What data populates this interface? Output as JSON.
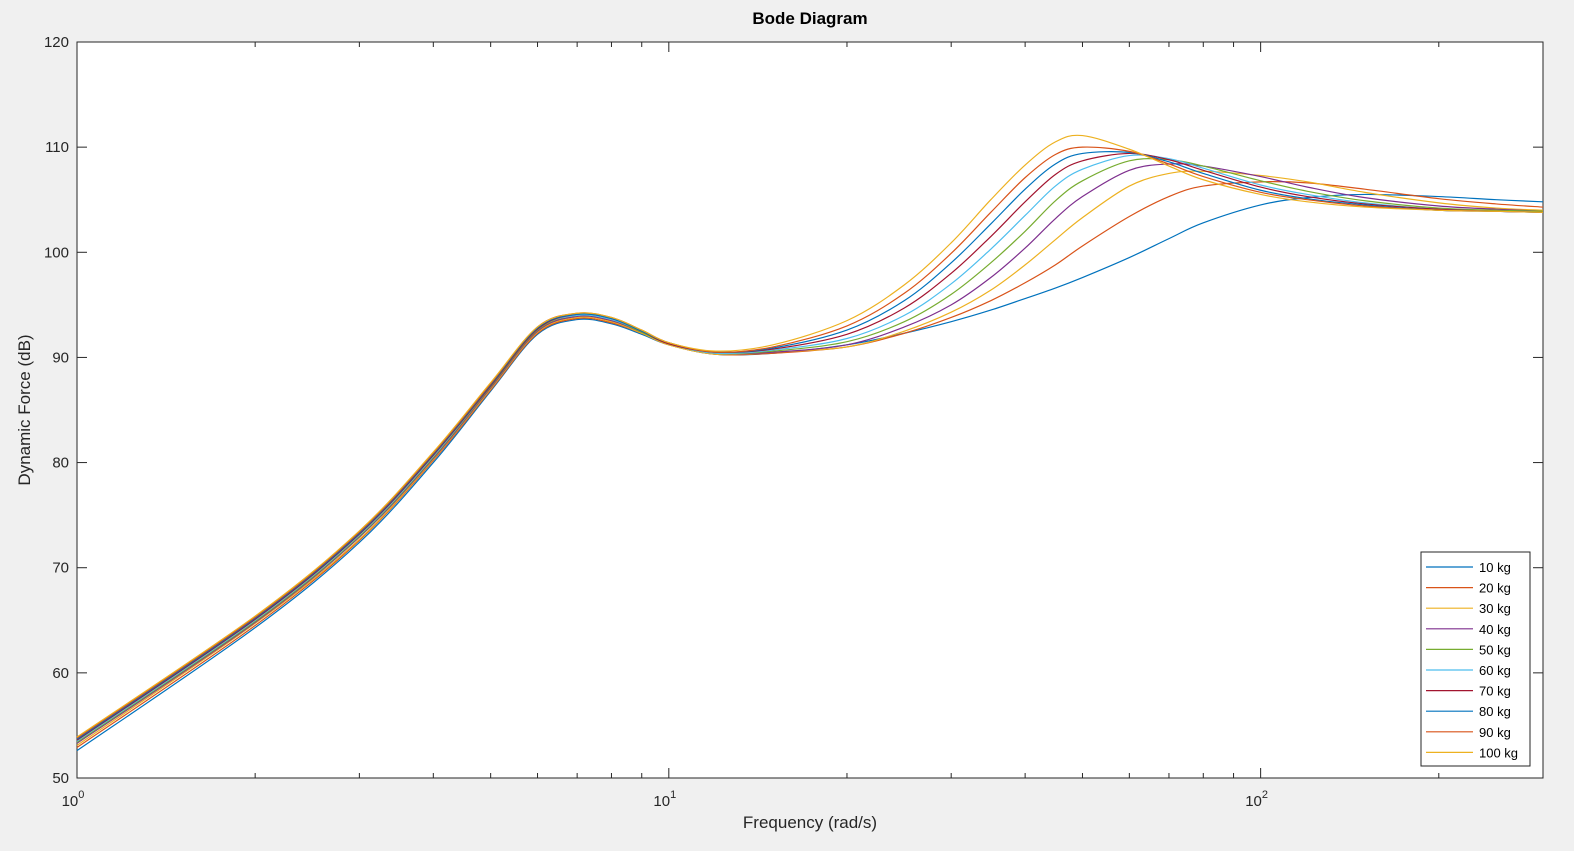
{
  "chart_data": {
    "type": "line",
    "title": "Bode Diagram",
    "xlabel": "Frequency  (rad/s)",
    "ylabel": "Dynamic Force (dB)",
    "xscale": "log",
    "xlim": [
      1,
      300
    ],
    "ylim": [
      50,
      120
    ],
    "x_ticks": [
      {
        "value": 1,
        "base": "10",
        "exp": "0"
      },
      {
        "value": 10,
        "base": "10",
        "exp": "1"
      },
      {
        "value": 100,
        "base": "10",
        "exp": "2"
      }
    ],
    "y_ticks": [
      50,
      60,
      70,
      80,
      90,
      100,
      110,
      120
    ],
    "grid": false,
    "legend_position": "bottom-right",
    "x": [
      1,
      2,
      3,
      4,
      5,
      6,
      7,
      8,
      9,
      10,
      12,
      15,
      20,
      25,
      30,
      35,
      40,
      45,
      50,
      60,
      70,
      80,
      100,
      120,
      150,
      200,
      250,
      300
    ],
    "series": [
      {
        "name": "10 kg",
        "color": "#0072BD",
        "values": [
          52.6,
          64.3,
          72.4,
          80.0,
          86.8,
          92.2,
          93.6,
          93.2,
          92.2,
          91.2,
          90.3,
          90.4,
          91.2,
          92.3,
          93.4,
          94.5,
          95.6,
          96.6,
          97.6,
          99.5,
          101.3,
          102.8,
          104.5,
          105.2,
          105.5,
          105.3,
          105.0,
          104.8
        ]
      },
      {
        "name": "20 kg",
        "color": "#D95319",
        "values": [
          52.9,
          64.5,
          72.6,
          80.2,
          86.9,
          92.3,
          93.7,
          93.3,
          92.3,
          91.2,
          90.3,
          90.4,
          91.0,
          92.3,
          93.8,
          95.4,
          97.1,
          98.8,
          100.6,
          103.4,
          105.3,
          106.3,
          106.7,
          106.6,
          106.0,
          105.1,
          104.6,
          104.3
        ]
      },
      {
        "name": "30 kg",
        "color": "#EDB120",
        "values": [
          53.1,
          64.7,
          72.7,
          80.3,
          87.0,
          92.4,
          93.8,
          93.4,
          92.3,
          91.2,
          90.3,
          90.5,
          91.0,
          92.5,
          94.3,
          96.4,
          98.8,
          101.2,
          103.3,
          106.3,
          107.5,
          107.7,
          107.3,
          106.7,
          105.7,
          104.7,
          104.2,
          104.0
        ]
      },
      {
        "name": "40 kg",
        "color": "#7E2F8E",
        "values": [
          53.3,
          64.8,
          72.9,
          80.4,
          87.1,
          92.5,
          93.9,
          93.5,
          92.4,
          91.3,
          90.4,
          90.5,
          91.2,
          92.9,
          95.0,
          97.6,
          100.4,
          103.2,
          105.3,
          107.8,
          108.4,
          108.2,
          107.2,
          106.2,
          105.2,
          104.4,
          104.1,
          103.9
        ]
      },
      {
        "name": "50 kg",
        "color": "#77AC30",
        "values": [
          53.4,
          64.9,
          73.0,
          80.5,
          87.2,
          92.6,
          94.0,
          93.6,
          92.4,
          91.3,
          90.4,
          90.6,
          91.5,
          93.4,
          96.0,
          99.0,
          102.0,
          104.9,
          106.8,
          108.7,
          108.8,
          108.2,
          106.8,
          105.8,
          104.9,
          104.2,
          104.0,
          103.9
        ]
      },
      {
        "name": "60 kg",
        "color": "#4DBEEE",
        "values": [
          53.5,
          65.0,
          73.1,
          80.6,
          87.3,
          92.7,
          94.0,
          93.6,
          92.5,
          91.3,
          90.4,
          90.7,
          91.8,
          94.0,
          97.0,
          100.3,
          103.5,
          106.3,
          107.9,
          109.2,
          108.9,
          108.0,
          106.4,
          105.5,
          104.7,
          104.1,
          103.9,
          103.8
        ]
      },
      {
        "name": "70 kg",
        "color": "#A2142F",
        "values": [
          53.6,
          65.1,
          73.2,
          80.7,
          87.3,
          92.7,
          94.1,
          93.7,
          92.5,
          91.3,
          90.5,
          90.8,
          92.2,
          94.7,
          98.0,
          101.5,
          104.8,
          107.4,
          108.7,
          109.4,
          108.8,
          107.8,
          106.2,
          105.3,
          104.6,
          104.1,
          103.9,
          103.8
        ]
      },
      {
        "name": "80 kg",
        "color": "#0072BD",
        "values": [
          53.7,
          65.2,
          73.3,
          80.8,
          87.4,
          92.8,
          94.1,
          93.7,
          92.5,
          91.4,
          90.5,
          90.9,
          92.6,
          95.4,
          99.0,
          102.7,
          106.0,
          108.4,
          109.4,
          109.5,
          108.6,
          107.5,
          105.9,
          105.1,
          104.5,
          104.0,
          103.9,
          103.8
        ]
      },
      {
        "name": "90 kg",
        "color": "#D95319",
        "values": [
          53.8,
          65.3,
          73.4,
          80.9,
          87.5,
          92.9,
          94.2,
          93.8,
          92.6,
          91.4,
          90.5,
          91.0,
          93.0,
          96.1,
          99.9,
          103.8,
          107.1,
          109.3,
          110.0,
          109.6,
          108.4,
          107.2,
          105.7,
          105.0,
          104.4,
          104.0,
          103.9,
          103.8
        ]
      },
      {
        "name": "100 kg",
        "color": "#EDB120",
        "values": [
          53.9,
          65.4,
          73.5,
          81.0,
          87.6,
          92.9,
          94.2,
          93.8,
          92.6,
          91.4,
          90.6,
          91.2,
          93.5,
          96.9,
          100.9,
          105.0,
          108.3,
          110.5,
          111.1,
          109.8,
          108.2,
          106.9,
          105.5,
          104.8,
          104.3,
          104.0,
          103.9,
          103.8
        ]
      }
    ]
  }
}
